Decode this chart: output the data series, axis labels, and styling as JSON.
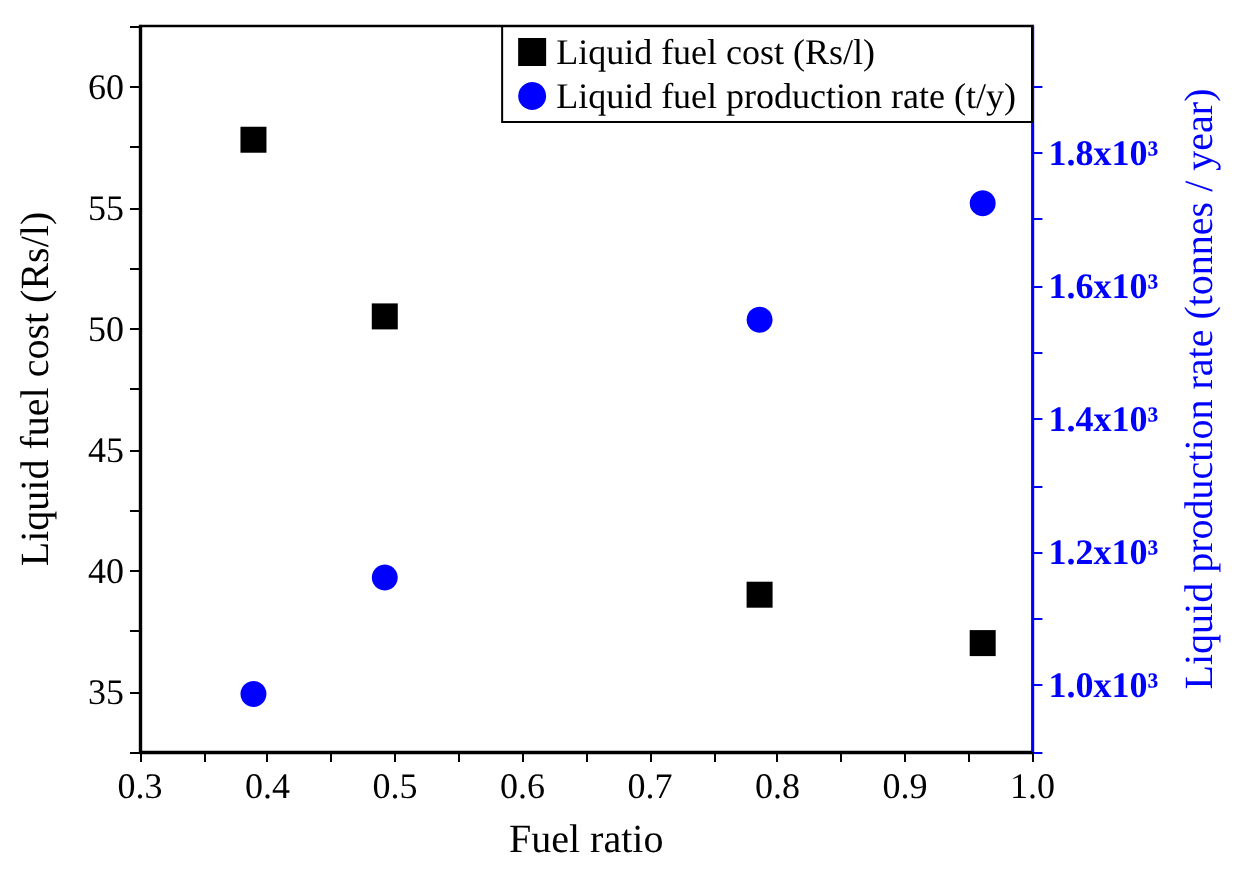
{
  "chart_data": {
    "type": "scatter",
    "xlabel": "Fuel ratio",
    "ylabel": "Liquid fuel cost (Rs/l)",
    "y2label": "Liquid production rate (tonnes / year)",
    "series": [
      {
        "name": "Liquid fuel cost (Rs/l)",
        "color": "#000000",
        "marker": "square",
        "x": [
          0.389,
          0.492,
          0.786,
          0.961
        ],
        "values": [
          57.8,
          50.5,
          39.0,
          37.0
        ]
      },
      {
        "name": "Liquid fuel production rate (t/y)",
        "color": "#0000ff",
        "marker": "circle",
        "axis": "y2",
        "x": [
          0.389,
          0.492,
          0.786,
          0.961
        ],
        "values": [
          987,
          1162,
          1549,
          1724
        ]
      }
    ],
    "xlim": [
      0.3,
      1.0
    ],
    "xticks": [
      0.3,
      {
        "value": 0.35,
        "label": null
      },
      0.4,
      {
        "value": 0.45,
        "label": null
      },
      0.5,
      {
        "value": 0.55,
        "label": null
      },
      0.6,
      {
        "value": 0.65,
        "label": null
      },
      0.7,
      {
        "value": 0.75,
        "label": null
      },
      0.8,
      {
        "value": 0.85,
        "label": null
      },
      0.9,
      {
        "value": 0.95,
        "label": null
      },
      {
        "value": 1.0,
        "label": "1.0"
      }
    ],
    "ylim": [
      32.5,
      62.5
    ],
    "yticks": [
      {
        "value": 32.5,
        "label": null
      },
      35,
      {
        "value": 37.5,
        "label": null
      },
      40,
      {
        "value": 42.5,
        "label": null
      },
      45,
      {
        "value": 47.5,
        "label": null
      },
      50,
      {
        "value": 52.5,
        "label": null
      },
      55,
      {
        "value": 57.5,
        "label": null
      },
      60,
      {
        "value": 62.5,
        "label": null
      }
    ],
    "y2lim": [
      900,
      1990
    ],
    "y2ticks": [
      {
        "value": 900,
        "label": null
      },
      {
        "value": 1000,
        "label": "1.0x10³"
      },
      {
        "value": 1100,
        "label": null
      },
      {
        "value": 1200,
        "label": "1.2x10³"
      },
      {
        "value": 1300,
        "label": null
      },
      {
        "value": 1400,
        "label": "1.4x10³"
      },
      {
        "value": 1500,
        "label": null
      },
      {
        "value": 1600,
        "label": "1.6x10³"
      },
      {
        "value": 1700,
        "label": null
      },
      {
        "value": 1800,
        "label": "1.8x10³"
      },
      {
        "value": 1900,
        "label": null
      }
    ],
    "legend": "top right",
    "grid": false
  }
}
